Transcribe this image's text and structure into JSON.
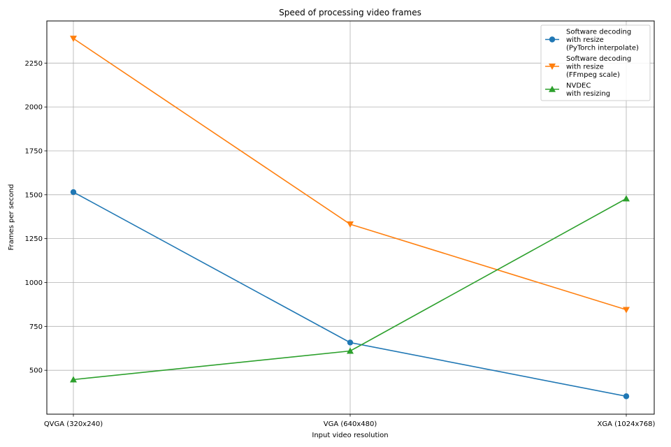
{
  "chart_data": {
    "type": "line",
    "title": "Speed of processing video frames",
    "xlabel": "Input video resolution",
    "ylabel": "Frames per second",
    "categories": [
      "QVGA (320x240)",
      "VGA (640x480)",
      "XGA (1024x768)"
    ],
    "ylim": [
      250,
      2490
    ],
    "yticks": [
      500,
      750,
      1000,
      1250,
      1500,
      1750,
      2000,
      2250
    ],
    "grid": true,
    "legend_position": "top-right",
    "series": [
      {
        "name": "Software decoding\nwith resize\n(PyTorch interpolate)",
        "values": [
          1515,
          658,
          352
        ],
        "color": "#1f77b4",
        "marker": "circle"
      },
      {
        "name": "Software decoding\nwith resize\n(FFmpeg scale)",
        "values": [
          2390,
          1332,
          845
        ],
        "color": "#ff7f0e",
        "marker": "triangle-down"
      },
      {
        "name": "NVDEC\nwith resizing",
        "values": [
          447,
          610,
          1478
        ],
        "color": "#2ca02c",
        "marker": "triangle-up"
      }
    ]
  }
}
